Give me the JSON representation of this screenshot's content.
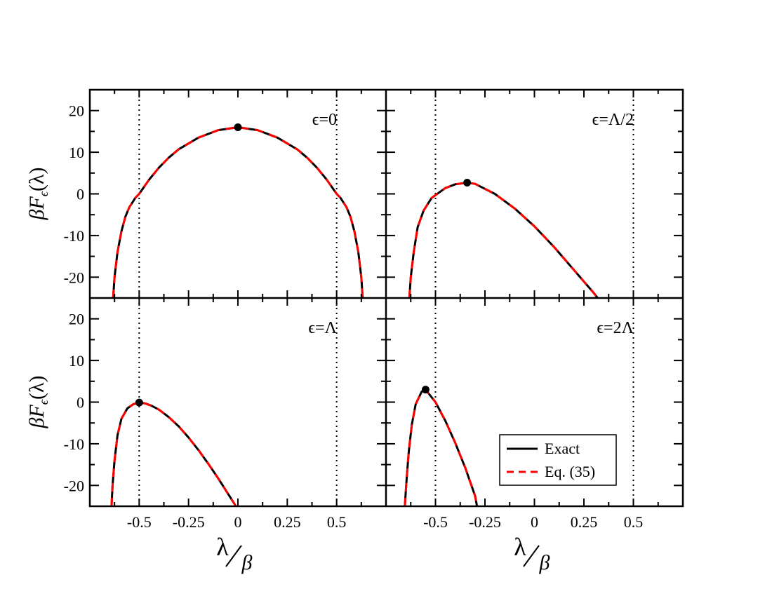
{
  "chart_data": {
    "type": "line",
    "layout": "2x2 panels with shared axes",
    "x_range": [
      -0.75,
      0.75
    ],
    "y_range": [
      -25,
      25
    ],
    "x_ticks": [
      -0.5,
      -0.25,
      0,
      0.25,
      0.5
    ],
    "x_tick_labels": [
      "-0.5",
      "-0.25",
      "0",
      "0.25",
      "0.5"
    ],
    "y_ticks": [
      -20,
      -10,
      0,
      10,
      20
    ],
    "y_tick_labels": [
      "-20",
      "-10",
      "0",
      "10",
      "20"
    ],
    "ylabel": {
      "beta": "β",
      "F": "F",
      "sub": "ϵ",
      "arg": "(λ)"
    },
    "xlabel": {
      "num": "λ",
      "den": "β"
    },
    "vertical_dotted_lines": [
      -0.5,
      0.5
    ],
    "legend": {
      "placement": "lower-right panel, bottom-right",
      "entries": [
        {
          "label": "Exact",
          "color": "#000000",
          "style": "solid"
        },
        {
          "label": "Eq. (35)",
          "color": "#ff0000",
          "style": "dashed"
        }
      ]
    },
    "series_styles": {
      "exact": {
        "color": "#000000",
        "style": "solid"
      },
      "approx": {
        "color": "#ff0000",
        "style": "dashed"
      }
    },
    "panels": [
      {
        "label": "ϵ=0",
        "position": "top-left",
        "curve": {
          "x": [
            -0.632,
            -0.625,
            -0.61,
            -0.59,
            -0.57,
            -0.55,
            -0.52,
            -0.5,
            -0.45,
            -0.4,
            -0.35,
            -0.3,
            -0.2,
            -0.1,
            0,
            0.1,
            0.2,
            0.3,
            0.35,
            0.4,
            0.45,
            0.5,
            0.52,
            0.55,
            0.57,
            0.59,
            0.61,
            0.625,
            0.632
          ],
          "y": [
            -25,
            -20,
            -14,
            -9,
            -5.5,
            -3.2,
            -1,
            0,
            3.4,
            6.3,
            8.7,
            10.7,
            13.5,
            15.3,
            16,
            15.3,
            13.5,
            10.7,
            8.7,
            6.3,
            3.4,
            0,
            -1,
            -3.2,
            -5.5,
            -9,
            -14,
            -20,
            -25
          ]
        },
        "marker": {
          "x": 0,
          "y": 16
        }
      },
      {
        "label": "ϵ=Λ/2",
        "position": "top-right",
        "curve": {
          "x": [
            -0.632,
            -0.625,
            -0.61,
            -0.59,
            -0.56,
            -0.52,
            -0.5,
            -0.45,
            -0.4,
            -0.34,
            -0.3,
            -0.2,
            -0.1,
            0,
            0.1,
            0.2,
            0.3,
            0.32
          ],
          "y": [
            -25,
            -20,
            -14,
            -8,
            -4,
            -1,
            -0.3,
            1.4,
            2.3,
            2.7,
            2.4,
            0,
            -3.5,
            -7.8,
            -12.8,
            -18.3,
            -23.8,
            -25
          ]
        },
        "marker": {
          "x": -0.34,
          "y": 2.7
        }
      },
      {
        "label": "ϵ=Λ",
        "position": "bottom-left",
        "curve": {
          "x": [
            -0.64,
            -0.635,
            -0.625,
            -0.61,
            -0.59,
            -0.56,
            -0.53,
            -0.5,
            -0.47,
            -0.44,
            -0.4,
            -0.35,
            -0.3,
            -0.25,
            -0.2,
            -0.15,
            -0.1,
            -0.05,
            -0.01
          ],
          "y": [
            -25,
            -20,
            -14,
            -8,
            -4,
            -1.5,
            -0.5,
            -0.1,
            -0.3,
            -0.8,
            -1.8,
            -3.6,
            -5.8,
            -8.5,
            -11.5,
            -14.8,
            -18.3,
            -22,
            -25
          ]
        },
        "marker": {
          "x": -0.5,
          "y": -0.1
        }
      },
      {
        "label": "ϵ=2Λ",
        "position": "bottom-right",
        "curve": {
          "x": [
            -0.655,
            -0.645,
            -0.635,
            -0.62,
            -0.6,
            -0.57,
            -0.55,
            -0.5,
            -0.45,
            -0.4,
            -0.35,
            -0.3,
            -0.29
          ],
          "y": [
            -25,
            -18,
            -12,
            -5.5,
            -0.5,
            2.5,
            3,
            0,
            -4.5,
            -9.8,
            -15.7,
            -22.5,
            -25
          ]
        },
        "marker": {
          "x": -0.55,
          "y": 3
        }
      }
    ]
  }
}
